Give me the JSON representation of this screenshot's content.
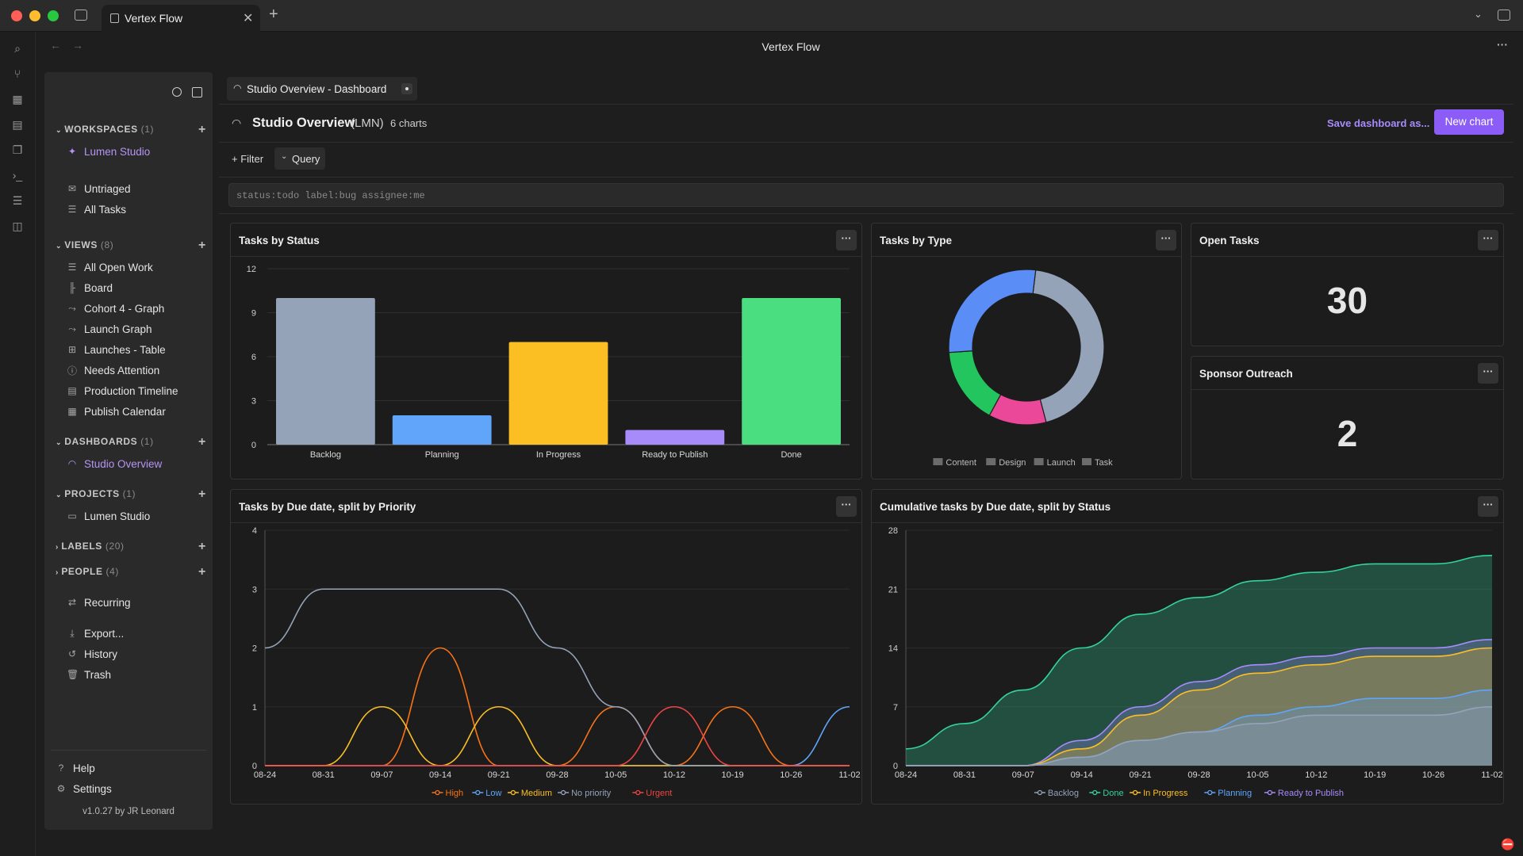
{
  "window": {
    "tab_title": "Vertex Flow",
    "title": "Vertex Flow"
  },
  "editor_tab": {
    "label": "Studio Overview - Dashboard"
  },
  "header": {
    "title": "Studio Overview",
    "code": "(LMN)",
    "chart_count": "6 charts",
    "save_label": "Save dashboard as...",
    "new_chart_label": "New chart"
  },
  "filterbar": {
    "filter_label": "+ Filter",
    "query_label": "Query",
    "query_value": "status:todo label:bug assignee:me"
  },
  "sidebar": {
    "workspaces": {
      "label": "WORKSPACES",
      "count": "(1)",
      "items": [
        "Lumen Studio"
      ]
    },
    "top_items": [
      "Untriaged",
      "All Tasks"
    ],
    "views": {
      "label": "VIEWS",
      "count": "(8)",
      "items": [
        "All Open Work",
        "Board",
        "Cohort 4 - Graph",
        "Launch Graph",
        "Launches - Table",
        "Needs Attention",
        "Production Timeline",
        "Publish Calendar"
      ]
    },
    "dashboards": {
      "label": "DASHBOARDS",
      "count": "(1)",
      "items": [
        "Studio Overview"
      ]
    },
    "projects": {
      "label": "PROJECTS",
      "count": "(1)",
      "items": [
        "Lumen Studio"
      ]
    },
    "labels": {
      "label": "LABELS",
      "count": "(20)"
    },
    "people": {
      "label": "PEOPLE",
      "count": "(4)"
    },
    "recurring": "Recurring",
    "tools": [
      "Export...",
      "History",
      "Trash"
    ],
    "footer": [
      "Help",
      "Settings"
    ],
    "version": "v1.0.27 by JR Leonard"
  },
  "panels": {
    "status": {
      "title": "Tasks by Status"
    },
    "type": {
      "title": "Tasks by Type"
    },
    "open": {
      "title": "Open Tasks",
      "value": "30"
    },
    "sponsor": {
      "title": "Sponsor Outreach",
      "value": "2"
    },
    "priority": {
      "title": "Tasks by Due date, split by Priority"
    },
    "cumulative": {
      "title": "Cumulative tasks by Due date, split by Status"
    }
  },
  "more_label": "···",
  "colors": {
    "accent": "#8b5cf6",
    "backlog": "#94a3b8",
    "planning": "#60a5fa",
    "in_progress": "#fbbf24",
    "ready": "#a78bfa",
    "done": "#4ade80"
  },
  "chart_data": [
    {
      "type": "bar",
      "title": "Tasks by Status",
      "categories": [
        "Backlog",
        "Planning",
        "In Progress",
        "Ready to Publish",
        "Done"
      ],
      "values": [
        10,
        2,
        7,
        1,
        10
      ],
      "ylim": [
        0,
        12
      ],
      "yticks": [
        0,
        3,
        6,
        9,
        12
      ],
      "colors": [
        "#94a3b8",
        "#60a5fa",
        "#fbbf24",
        "#a78bfa",
        "#4ade80"
      ]
    },
    {
      "type": "pie",
      "title": "Tasks by Type",
      "labels": [
        "Content",
        "Design",
        "Launch",
        "Task"
      ],
      "values": [
        11,
        3,
        4,
        7
      ],
      "colors": [
        "#94a3b8",
        "#ec4899",
        "#22c55e",
        "#5b8df6"
      ],
      "legend": "bottom"
    },
    {
      "type": "line",
      "title": "Tasks by Due date, split by Priority",
      "x": [
        "08-24",
        "08-31",
        "09-07",
        "09-14",
        "09-21",
        "09-28",
        "10-05",
        "10-12",
        "10-19",
        "10-26",
        "11-02"
      ],
      "ylim": [
        0,
        4
      ],
      "yticks": [
        0,
        1,
        2,
        3,
        4
      ],
      "legend": "bottom",
      "series": [
        {
          "name": "High",
          "color": "#f97316",
          "values": [
            0,
            0,
            0,
            2,
            0,
            0,
            1,
            0,
            1,
            0,
            0
          ]
        },
        {
          "name": "Low",
          "color": "#60a5fa",
          "values": [
            0,
            0,
            0,
            0,
            0,
            0,
            0,
            0,
            0,
            0,
            1
          ]
        },
        {
          "name": "Medium",
          "color": "#fbbf24",
          "values": [
            0,
            0,
            1,
            0,
            1,
            0,
            0,
            0,
            0,
            0,
            0
          ]
        },
        {
          "name": "No priority",
          "color": "#94a3b8",
          "values": [
            2,
            3,
            3,
            3,
            3,
            2,
            1,
            0,
            0,
            0,
            0
          ]
        },
        {
          "name": "Urgent",
          "color": "#ef4444",
          "values": [
            0,
            0,
            0,
            0,
            0,
            0,
            0,
            1,
            0,
            0,
            0
          ]
        }
      ]
    },
    {
      "type": "area",
      "title": "Cumulative tasks by Due date, split by Status",
      "x": [
        "08-24",
        "08-31",
        "09-07",
        "09-14",
        "09-21",
        "09-28",
        "10-05",
        "10-12",
        "10-19",
        "10-26",
        "11-02"
      ],
      "ylim": [
        0,
        28
      ],
      "yticks": [
        0,
        7,
        14,
        21,
        28
      ],
      "legend": "bottom",
      "series": [
        {
          "name": "Backlog",
          "color": "#94a3b8",
          "values": [
            0,
            0,
            0,
            1,
            3,
            4,
            5,
            6,
            6,
            6,
            7
          ]
        },
        {
          "name": "Done",
          "color": "#34d399",
          "values": [
            2,
            5,
            9,
            14,
            18,
            20,
            22,
            23,
            24,
            24,
            25
          ]
        },
        {
          "name": "In Progress",
          "color": "#fbbf24",
          "values": [
            0,
            0,
            0,
            2,
            6,
            9,
            11,
            12,
            13,
            13,
            14
          ]
        },
        {
          "name": "Planning",
          "color": "#60a5fa",
          "values": [
            0,
            0,
            0,
            1,
            3,
            4,
            6,
            7,
            8,
            8,
            9
          ]
        },
        {
          "name": "Ready to Publish",
          "color": "#a78bfa",
          "values": [
            0,
            0,
            0,
            3,
            7,
            10,
            12,
            13,
            14,
            14,
            15
          ]
        }
      ]
    }
  ]
}
